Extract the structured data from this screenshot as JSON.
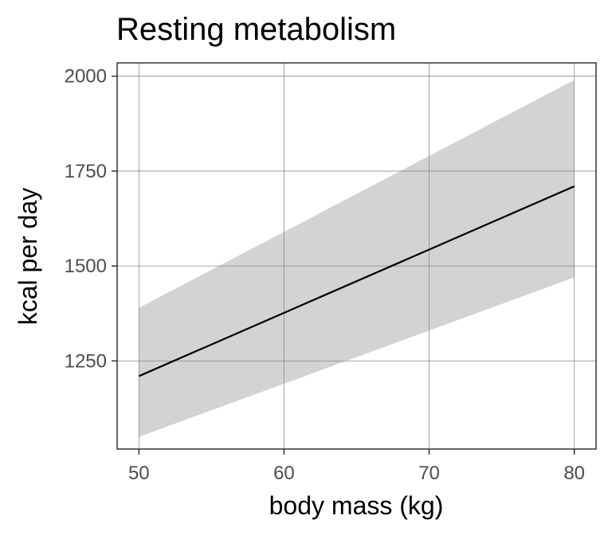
{
  "chart_data": {
    "type": "line",
    "title": "Resting metabolism",
    "xlabel": "body mass (kg)",
    "ylabel": "kcal per day",
    "xlim": [
      48.5,
      81.5
    ],
    "ylim": [
      1018,
      2035
    ],
    "x_ticks": [
      50,
      60,
      70,
      80
    ],
    "y_ticks": [
      1250,
      1500,
      1750,
      2000
    ],
    "x_tick_labels": [
      "50",
      "60",
      "70",
      "80"
    ],
    "y_tick_labels": [
      "1250",
      "1500",
      "1750",
      "2000"
    ],
    "grid": true,
    "legend": "none",
    "series": [
      {
        "x": [
          50,
          80
        ],
        "y": [
          1210,
          1710
        ]
      }
    ],
    "ribbon": {
      "x": [
        50,
        80
      ],
      "lower": [
        1050,
        1470
      ],
      "upper": [
        1390,
        1990
      ]
    },
    "colors": {
      "line": "#000000",
      "ribbon": "#d3d3d3",
      "grid": "#808080",
      "panel_border": "#333333",
      "tick_label": "#4d4d4d"
    }
  }
}
